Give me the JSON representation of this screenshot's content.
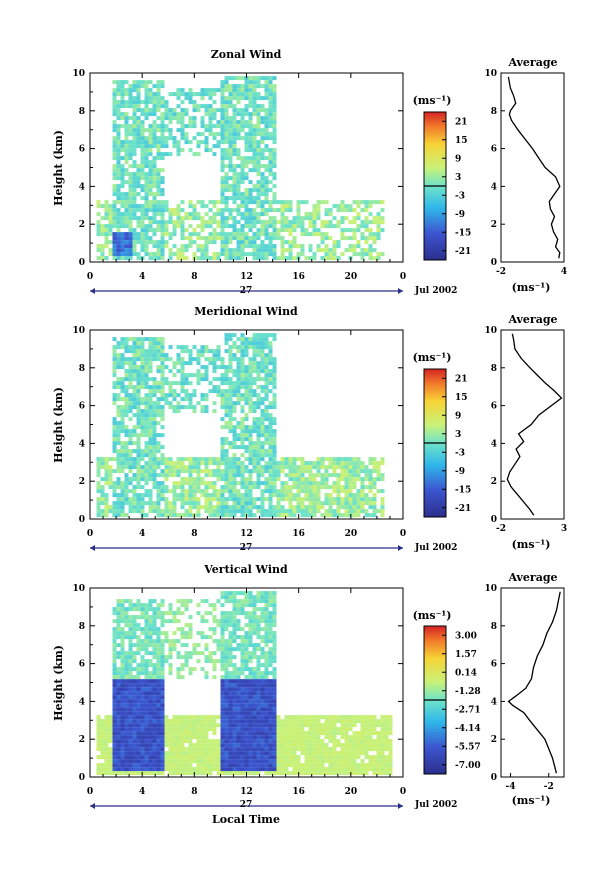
{
  "figure": {
    "date_label": "Jul 2002",
    "bottom_xlabel": "Local Time"
  },
  "chart_data": [
    {
      "type": "heatmap",
      "title": "Zonal Wind",
      "ylabel": "Height (km)",
      "ylim": [
        0,
        10
      ],
      "yticks": [
        0,
        2,
        4,
        6,
        8,
        10
      ],
      "xlim": [
        0,
        24
      ],
      "xtick_labels": [
        "0",
        "4",
        "8",
        "12",
        "16",
        "20",
        "0"
      ],
      "day_label": "27",
      "date_label": "Jul 2002",
      "colorbar": {
        "unit": "(ms⁻¹)",
        "ticks": [
          "21",
          "15",
          "9",
          "3",
          "-3",
          "-9",
          "-15",
          "-21"
        ],
        "min": -24,
        "max": 24
      },
      "avg_title": "Average",
      "avg_xlabel": "(ms⁻¹)",
      "avg_xticks": [
        "-2",
        "4"
      ],
      "avg_xlim": [
        -2,
        4
      ],
      "avg_profile": {
        "height": [
          0.2,
          0.5,
          0.8,
          1.2,
          1.6,
          2.0,
          2.4,
          2.8,
          3.2,
          3.6,
          4.0,
          4.5,
          5.0,
          5.5,
          6.0,
          6.5,
          7.0,
          7.5,
          7.8,
          8.0,
          8.4,
          8.8,
          9.2,
          9.5,
          9.8
        ],
        "value": [
          3.5,
          3.6,
          3.2,
          3.4,
          3.0,
          2.8,
          3.1,
          2.7,
          2.6,
          3.1,
          3.6,
          3.2,
          2.2,
          1.6,
          1.0,
          0.3,
          -0.4,
          -1.0,
          -1.2,
          -1.1,
          -0.6,
          -0.8,
          -1.1,
          -1.2,
          -1.3
        ]
      }
    },
    {
      "type": "heatmap",
      "title": "Meridional Wind",
      "ylabel": "Height (km)",
      "ylim": [
        0,
        10
      ],
      "yticks": [
        0,
        2,
        4,
        6,
        8,
        10
      ],
      "xlim": [
        0,
        24
      ],
      "xtick_labels": [
        "0",
        "4",
        "8",
        "12",
        "16",
        "20",
        "0"
      ],
      "day_label": "27",
      "date_label": "Jul 2002",
      "colorbar": {
        "unit": "(ms⁻¹)",
        "ticks": [
          "21",
          "15",
          "9",
          "3",
          "-3",
          "-9",
          "-15",
          "-21"
        ],
        "min": -24,
        "max": 24
      },
      "avg_title": "Average",
      "avg_xlabel": "(ms⁻¹)",
      "avg_xticks": [
        "-2",
        "3"
      ],
      "avg_xlim": [
        -2,
        3
      ],
      "avg_profile": {
        "height": [
          0.2,
          0.5,
          0.9,
          1.3,
          1.7,
          2.1,
          2.5,
          2.9,
          3.3,
          3.7,
          4.1,
          4.5,
          5.0,
          5.5,
          6.0,
          6.4,
          6.8,
          7.2,
          7.6,
          8.0,
          8.5,
          9.0,
          9.5,
          9.8
        ],
        "value": [
          0.6,
          0.3,
          -0.2,
          -0.7,
          -1.2,
          -1.5,
          -1.3,
          -0.9,
          -0.5,
          -0.8,
          -0.2,
          -0.6,
          0.4,
          1.0,
          2.0,
          2.8,
          2.2,
          1.5,
          0.9,
          0.3,
          -0.4,
          -0.9,
          -1.0,
          -1.1
        ]
      }
    },
    {
      "type": "heatmap",
      "title": "Vertical Wind",
      "ylabel": "Height (km)",
      "ylim": [
        0,
        10
      ],
      "yticks": [
        0,
        2,
        4,
        6,
        8,
        10
      ],
      "xlim": [
        0,
        24
      ],
      "xtick_labels": [
        "0",
        "4",
        "8",
        "12",
        "16",
        "20",
        "0"
      ],
      "day_label": "27",
      "date_label": "Jul 2002",
      "colorbar": {
        "unit": "(ms⁻¹)",
        "ticks": [
          "3.00",
          "1.57",
          "0.14",
          "-1.28",
          "-2.71",
          "-4.14",
          "-5.57",
          "-7.00"
        ],
        "min": -7.7,
        "max": 3.7
      },
      "avg_title": "Average",
      "avg_xlabel": "(ms⁻¹)",
      "avg_xticks": [
        "-4",
        "-2"
      ],
      "avg_xlim": [
        -4.5,
        -1.2
      ],
      "avg_profile": {
        "height": [
          0.2,
          0.6,
          1.0,
          1.5,
          2.0,
          2.5,
          3.0,
          3.4,
          3.8,
          4.0,
          4.3,
          4.7,
          5.2,
          5.8,
          6.4,
          7.0,
          7.6,
          8.2,
          8.8,
          9.3,
          9.8
        ],
        "value": [
          -1.6,
          -1.7,
          -1.8,
          -2.0,
          -2.2,
          -2.6,
          -3.0,
          -3.3,
          -3.9,
          -4.1,
          -3.7,
          -3.2,
          -2.9,
          -2.8,
          -2.6,
          -2.3,
          -2.1,
          -1.8,
          -1.6,
          -1.5,
          -1.4
        ]
      }
    }
  ]
}
